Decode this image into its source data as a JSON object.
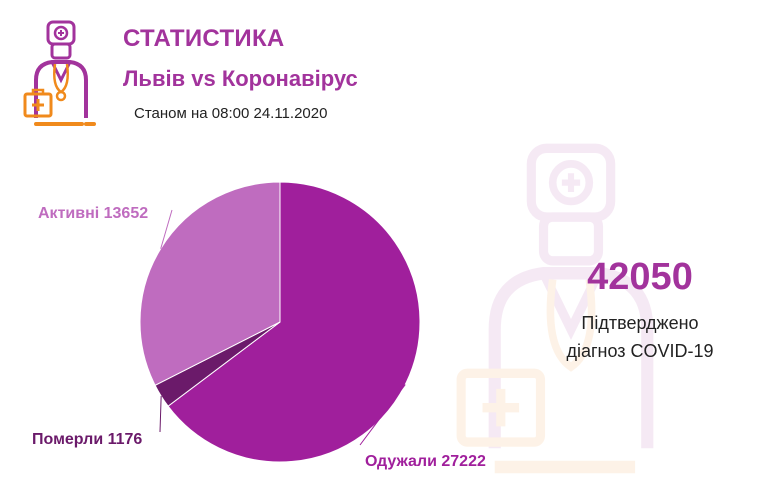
{
  "header": {
    "title": "СТАТИСТИКА",
    "subtitle": "Львів vs Коронавірус",
    "date_line": "Станом на 08:00 24.11.2020"
  },
  "icons": {
    "logo": "doctor-with-medkit-icon",
    "watermark": "doctor-with-medkit-icon"
  },
  "colors": {
    "accent": "#a2339c",
    "recovered": "#a01f9c",
    "active": "#bf6cbf",
    "deaths": "#6b1a6a",
    "medkit": "#f08a1c",
    "text": "#222222"
  },
  "kpi": {
    "value": "42050",
    "line1": "Підтверджено",
    "line2": "діагноз COVID-19"
  },
  "chart_data": {
    "type": "pie",
    "title": "",
    "slices": [
      {
        "label": "Одужали 27222",
        "name": "Одужали",
        "value": 27222,
        "color": "#a01f9c"
      },
      {
        "label": "Померли 1176",
        "name": "Померли",
        "value": 1176,
        "color": "#6b1a6a"
      },
      {
        "label": "Активні 13652",
        "name": "Активні",
        "value": 13652,
        "color": "#bf6cbf"
      }
    ]
  }
}
